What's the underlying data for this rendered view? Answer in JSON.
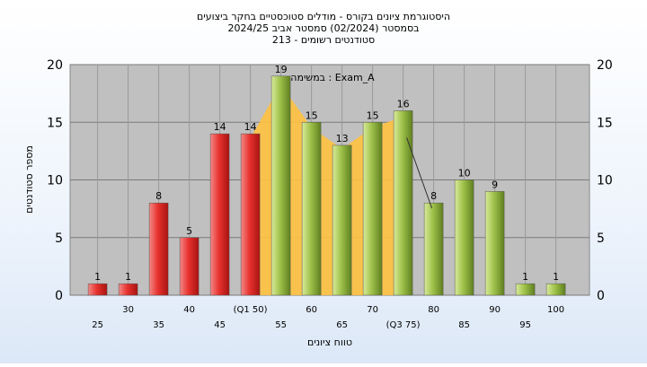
{
  "header": {
    "line1": "היסטוגרמת ציונים בקורס - מודלים סטוכסטיים בחקר ביצועים",
    "line2": "בסמסטר  (02/2024)  סמסטר אביב 2024/25",
    "line3": "סטודנטים רשומים - 213"
  },
  "chart_data": {
    "type": "bar",
    "xlabel": "טווח ציונים",
    "ylabel": "מספר סטודנטים",
    "ylim": [
      0,
      20
    ],
    "yticks": [
      0,
      5,
      10,
      15,
      20
    ],
    "grid": true,
    "annotation": "במשימה : Exam_A",
    "categories": [
      "25",
      "30",
      "35",
      "40",
      "45",
      "(Q1 50)",
      "55",
      "60",
      "65",
      "70",
      "(Q3 75)",
      "80",
      "85",
      "90",
      "95",
      "100"
    ],
    "values": [
      1,
      1,
      8,
      5,
      14,
      14,
      19,
      15,
      13,
      15,
      16,
      8,
      10,
      9,
      1,
      1
    ],
    "highlight_band": {
      "from_category": "(Q1 50)",
      "to_category": "(Q3 75)"
    },
    "colors": {
      "red": "#e8322f",
      "green": "#9fc24a",
      "band": "#ffc23f",
      "plot_bg": "#c0c0c0",
      "line": "#333333"
    }
  }
}
